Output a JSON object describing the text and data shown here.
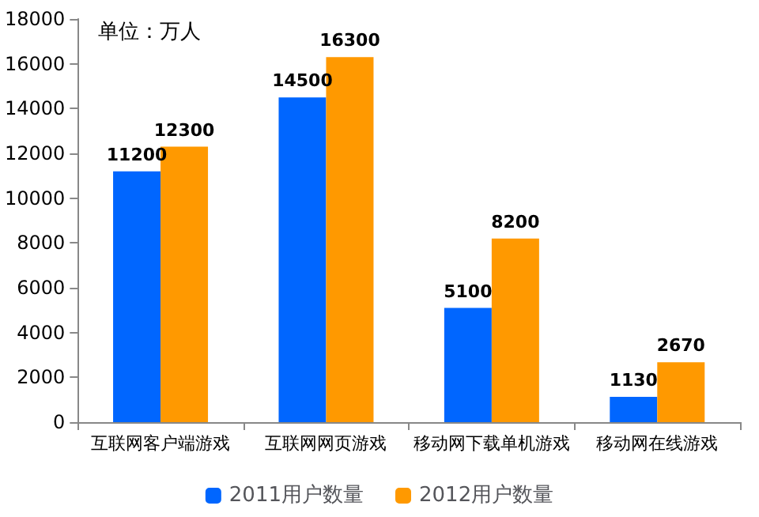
{
  "chart_data": {
    "type": "bar",
    "categories": [
      "互联网客户端游戏",
      "互联网网页游戏",
      "移动网下载单机游戏",
      "移动网在线游戏"
    ],
    "series": [
      {
        "name": "2011用户数量",
        "color": "#0066ff",
        "values": [
          11200,
          14500,
          5100,
          1130
        ]
      },
      {
        "name": "2012用户数量",
        "color": "#ff9900",
        "values": [
          12300,
          16300,
          8200,
          2670
        ]
      }
    ],
    "ylim": [
      0,
      18000
    ],
    "yticks": [
      0,
      2000,
      4000,
      6000,
      8000,
      10000,
      12000,
      14000,
      16000,
      18000
    ],
    "annotations": [
      "单位：万人"
    ],
    "data_labels": true,
    "grid": false,
    "legend": "bottom"
  }
}
